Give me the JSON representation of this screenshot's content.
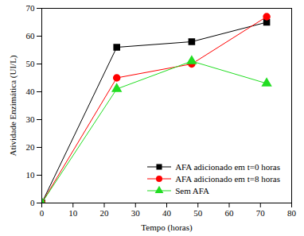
{
  "chart_data": {
    "type": "line",
    "xlabel": "Tempo (horas)",
    "ylabel": "Atividade Enzimática (UI/L)",
    "x": [
      0,
      24,
      48,
      72
    ],
    "series": [
      {
        "name": "AFA adicionado em t=0 horas",
        "color": "#000000",
        "marker": "square",
        "values": [
          0,
          56,
          58,
          65
        ]
      },
      {
        "name": "AFA adicionado em t=8 horas",
        "color": "#ff0000",
        "marker": "circle",
        "values": [
          0,
          45,
          50,
          67
        ]
      },
      {
        "name": "Sem AFA",
        "color": "#22dd22",
        "marker": "triangle",
        "values": [
          0,
          41,
          51,
          43
        ]
      }
    ],
    "xlim": [
      0,
      80
    ],
    "xticks": [
      0,
      10,
      20,
      30,
      40,
      50,
      60,
      70,
      80
    ],
    "ylim": [
      0,
      70
    ],
    "yticks": [
      0,
      10,
      20,
      30,
      40,
      50,
      60,
      70
    ],
    "legend": "lower right",
    "grid": false
  }
}
